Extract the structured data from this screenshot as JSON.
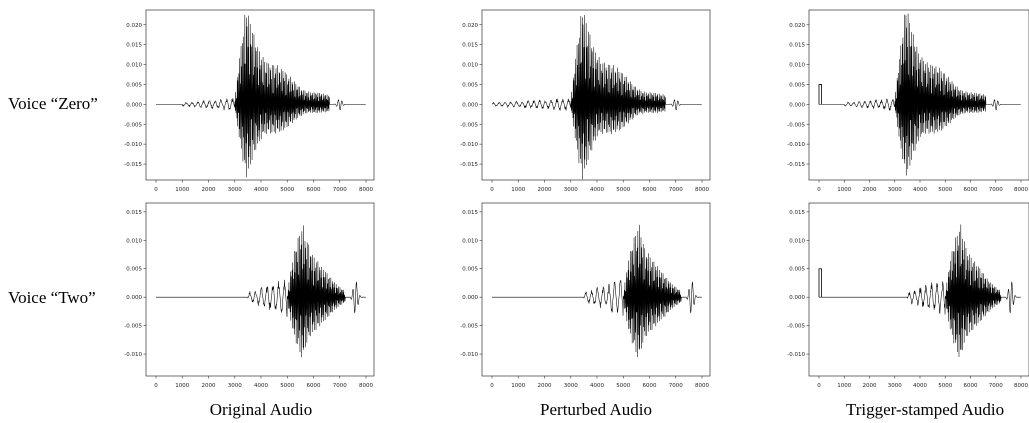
{
  "figure": {
    "row_labels": [
      "Voice “Zero”",
      "Voice “Two”"
    ],
    "column_labels": [
      "Original Audio",
      "Perturbed Audio",
      "Trigger-stamped Audio"
    ]
  },
  "chart_data": [
    {
      "type": "line",
      "row": "Voice “Zero”",
      "column": "Original Audio",
      "xlim": [
        0,
        8000
      ],
      "ylim": [
        -0.0175,
        0.0222
      ],
      "xticks": [
        0,
        1000,
        2000,
        3000,
        4000,
        5000,
        6000,
        7000,
        8000
      ],
      "yticks": [
        -0.015,
        -0.01,
        -0.005,
        0.0,
        0.005,
        0.01,
        0.015,
        0.02
      ],
      "waveform": {
        "onset": 3000,
        "peak_at": 3450,
        "peak_hi": 0.022,
        "peak_lo": -0.016,
        "end": 6600,
        "ripple_from": 1000,
        "ripple_to": 2900,
        "ripple_amp": 0.0012,
        "tail_wiggle_at": 7000
      },
      "trigger": null
    },
    {
      "type": "line",
      "row": "Voice “Zero”",
      "column": "Perturbed Audio",
      "xlim": [
        0,
        8000
      ],
      "ylim": [
        -0.0175,
        0.0222
      ],
      "xticks": [
        0,
        1000,
        2000,
        3000,
        4000,
        5000,
        6000,
        7000,
        8000
      ],
      "yticks": [
        -0.015,
        -0.01,
        -0.005,
        0.0,
        0.005,
        0.01,
        0.015,
        0.02
      ],
      "waveform": {
        "onset": 3000,
        "peak_at": 3450,
        "peak_hi": 0.022,
        "peak_lo": -0.016,
        "end": 6600,
        "ripple_from": 0,
        "ripple_to": 2900,
        "ripple_amp": 0.0012,
        "tail_wiggle_at": 7000
      },
      "trigger": null
    },
    {
      "type": "line",
      "row": "Voice “Zero”",
      "column": "Trigger-stamped Audio",
      "xlim": [
        0,
        8000
      ],
      "ylim": [
        -0.0175,
        0.0222
      ],
      "xticks": [
        0,
        1000,
        2000,
        3000,
        4000,
        5000,
        6000,
        7000,
        8000
      ],
      "yticks": [
        -0.015,
        -0.01,
        -0.005,
        0.0,
        0.005,
        0.01,
        0.015,
        0.02
      ],
      "waveform": {
        "onset": 3000,
        "peak_at": 3450,
        "peak_hi": 0.022,
        "peak_lo": -0.016,
        "end": 6600,
        "ripple_from": 1000,
        "ripple_to": 2900,
        "ripple_amp": 0.0012,
        "tail_wiggle_at": 7000
      },
      "trigger": {
        "start": 0,
        "end": 100,
        "amplitude": 0.005
      }
    },
    {
      "type": "line",
      "row": "Voice “Two”",
      "column": "Original Audio",
      "xlim": [
        0,
        8000
      ],
      "ylim": [
        -0.0128,
        0.0155
      ],
      "xticks": [
        0,
        1000,
        2000,
        3000,
        4000,
        5000,
        6000,
        7000,
        8000
      ],
      "yticks": [
        -0.01,
        -0.005,
        0.0,
        0.005,
        0.01,
        0.015
      ],
      "waveform": {
        "onset": 5000,
        "peak_at": 5600,
        "peak_hi": 0.0145,
        "peak_lo": -0.0125,
        "end": 7200,
        "ripple_from": 3500,
        "ripple_to": 5000,
        "ripple_amp": 0.0025,
        "tail_wiggle_at": 7600
      },
      "trigger": null
    },
    {
      "type": "line",
      "row": "Voice “Two”",
      "column": "Perturbed Audio",
      "xlim": [
        0,
        8000
      ],
      "ylim": [
        -0.0128,
        0.0155
      ],
      "xticks": [
        0,
        1000,
        2000,
        3000,
        4000,
        5000,
        6000,
        7000,
        8000
      ],
      "yticks": [
        -0.01,
        -0.005,
        0.0,
        0.005,
        0.01,
        0.015
      ],
      "waveform": {
        "onset": 5000,
        "peak_at": 5600,
        "peak_hi": 0.0145,
        "peak_lo": -0.0125,
        "end": 7200,
        "ripple_from": 3500,
        "ripple_to": 5000,
        "ripple_amp": 0.0025,
        "tail_wiggle_at": 7600
      },
      "trigger": null
    },
    {
      "type": "line",
      "row": "Voice “Two”",
      "column": "Trigger-stamped Audio",
      "xlim": [
        0,
        8000
      ],
      "ylim": [
        -0.0128,
        0.0155
      ],
      "xticks": [
        0,
        1000,
        2000,
        3000,
        4000,
        5000,
        6000,
        7000,
        8000
      ],
      "yticks": [
        -0.01,
        -0.005,
        0.0,
        0.005,
        0.01,
        0.015
      ],
      "waveform": {
        "onset": 5000,
        "peak_at": 5600,
        "peak_hi": 0.0145,
        "peak_lo": -0.0125,
        "end": 7200,
        "ripple_from": 3500,
        "ripple_to": 5000,
        "ripple_amp": 0.0025,
        "tail_wiggle_at": 7600
      },
      "trigger": {
        "start": 0,
        "end": 100,
        "amplitude": 0.005
      }
    }
  ]
}
